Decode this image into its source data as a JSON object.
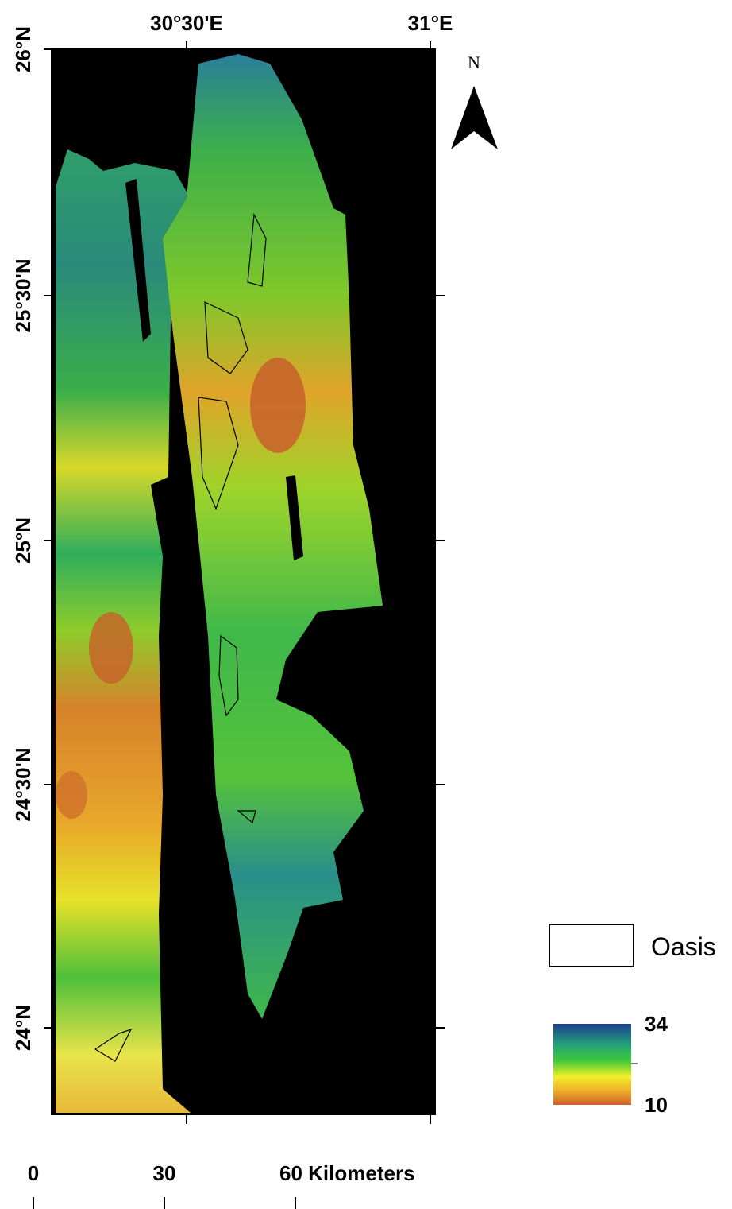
{
  "map": {
    "longitude_labels": [
      "30°30'E",
      "31°E"
    ],
    "latitude_labels": [
      "26°N",
      "25°30'N",
      "25°N",
      "24°30'N",
      "24°N"
    ],
    "north_label": "N",
    "legend": {
      "oasis": "Oasis",
      "colorbar_max": 34,
      "colorbar_min": 10
    },
    "scale_bar": {
      "labels": [
        "0",
        "30",
        "60 Kilometers"
      ]
    }
  }
}
